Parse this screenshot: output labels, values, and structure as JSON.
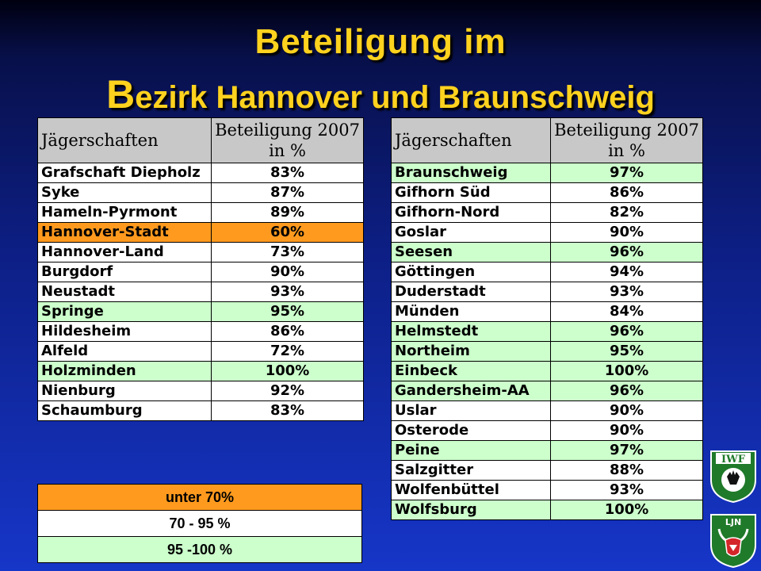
{
  "title": {
    "line1": "Beteiligung im",
    "line2_first": "B",
    "line2_rest": "ezirk Hannover und  Braunschweig"
  },
  "header": {
    "col1": "Jägerschaften",
    "col2_line1": "Beteiligung 2007",
    "col2_line2": "in %"
  },
  "colors": {
    "orange": "#ff9a1e",
    "green": "#ccffcc",
    "title": "#ffd21e"
  },
  "left_rows": [
    {
      "name": "Grafschaft Diepholz",
      "value": "83%",
      "cat": "white"
    },
    {
      "name": "Syke",
      "value": "87%",
      "cat": "white"
    },
    {
      "name": "Hameln-Pyrmont",
      "value": "89%",
      "cat": "white"
    },
    {
      "name": "Hannover-Stadt",
      "value": "60%",
      "cat": "orange"
    },
    {
      "name": "Hannover-Land",
      "value": "73%",
      "cat": "white"
    },
    {
      "name": "Burgdorf",
      "value": "90%",
      "cat": "white"
    },
    {
      "name": "Neustadt",
      "value": "93%",
      "cat": "white"
    },
    {
      "name": "Springe",
      "value": "95%",
      "cat": "green"
    },
    {
      "name": "Hildesheim",
      "value": "86%",
      "cat": "white"
    },
    {
      "name": "Alfeld",
      "value": "72%",
      "cat": "white"
    },
    {
      "name": "Holzminden",
      "value": "100%",
      "cat": "green"
    },
    {
      "name": "Nienburg",
      "value": "92%",
      "cat": "white"
    },
    {
      "name": "Schaumburg",
      "value": "83%",
      "cat": "white"
    }
  ],
  "right_rows": [
    {
      "name": "Braunschweig",
      "value": "97%",
      "cat": "green"
    },
    {
      "name": "Gifhorn Süd",
      "value": "86%",
      "cat": "white"
    },
    {
      "name": "Gifhorn-Nord",
      "value": "82%",
      "cat": "white"
    },
    {
      "name": "Goslar",
      "value": "90%",
      "cat": "white"
    },
    {
      "name": "Seesen",
      "value": "96%",
      "cat": "green"
    },
    {
      "name": "Göttingen",
      "value": "94%",
      "cat": "white"
    },
    {
      "name": "Duderstadt",
      "value": "93%",
      "cat": "white"
    },
    {
      "name": "Münden",
      "value": "84%",
      "cat": "white"
    },
    {
      "name": "Helmstedt",
      "value": "96%",
      "cat": "green"
    },
    {
      "name": "Northeim",
      "value": "95%",
      "cat": "green"
    },
    {
      "name": "Einbeck",
      "value": "100%",
      "cat": "green"
    },
    {
      "name": "Gandersheim-AA",
      "value": "96%",
      "cat": "green"
    },
    {
      "name": "Uslar",
      "value": "90%",
      "cat": "white"
    },
    {
      "name": "Osterode",
      "value": "90%",
      "cat": "white"
    },
    {
      "name": "Peine",
      "value": "97%",
      "cat": "green"
    },
    {
      "name": "Salzgitter",
      "value": "88%",
      "cat": "white"
    },
    {
      "name": "Wolfenbüttel",
      "value": "93%",
      "cat": "white"
    },
    {
      "name": "Wolfsburg",
      "value": "100%",
      "cat": "green"
    }
  ],
  "legend": {
    "orange": "unter 70%",
    "white": "70 - 95 %",
    "green": "95 -100 %"
  },
  "logos": {
    "top_text": "IWF",
    "bottom_text": "LJN"
  }
}
